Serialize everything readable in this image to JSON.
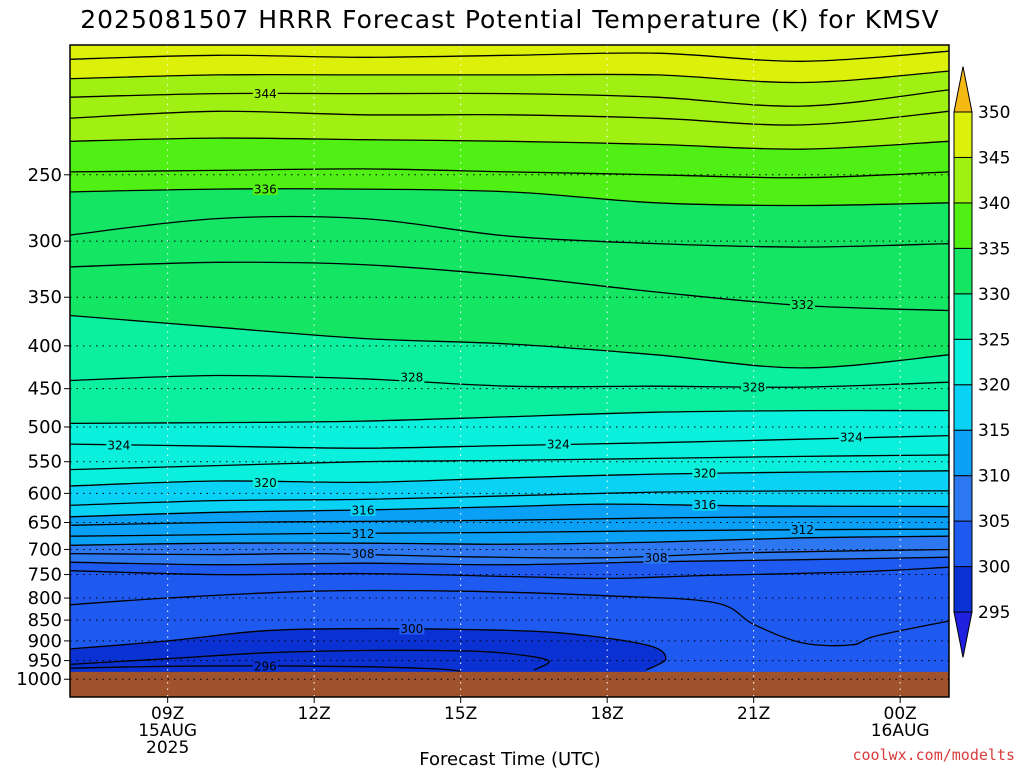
{
  "chart_data": {
    "type": "contour",
    "title": "2025081507 HRRR Forecast Potential Temperature (K) for KMSV",
    "xlabel": "Forecast Time (UTC)",
    "watermark": "coolwx.com/modelts",
    "x_ticks": [
      {
        "hour": 9,
        "lines": [
          "09Z",
          "15AUG",
          "2025"
        ]
      },
      {
        "hour": 12,
        "lines": [
          "12Z"
        ]
      },
      {
        "hour": 15,
        "lines": [
          "15Z"
        ]
      },
      {
        "hour": 18,
        "lines": [
          "18Z"
        ]
      },
      {
        "hour": 21,
        "lines": [
          "21Z"
        ]
      },
      {
        "hour": 24,
        "lines": [
          "00Z",
          "16AUG"
        ]
      }
    ],
    "xlim_hours": [
      7,
      25
    ],
    "y_axis": {
      "scale": "log",
      "reversed": true,
      "unit": "hPa",
      "ylim": [
        1050,
        175
      ]
    },
    "y_ticks": [
      250,
      300,
      350,
      400,
      450,
      500,
      550,
      600,
      650,
      700,
      750,
      800,
      850,
      900,
      950,
      1000
    ],
    "ground_level_hpa": 980,
    "colorbar": {
      "ticks": [
        295,
        300,
        305,
        310,
        315,
        320,
        325,
        330,
        335,
        340,
        345,
        350
      ],
      "extend": "both",
      "colors": [
        "#2020e0",
        "#0a32d2",
        "#1e5af0",
        "#2d78f0",
        "#0aa0f5",
        "#0ad2f5",
        "#0af0dc",
        "#0af0a0",
        "#14e664",
        "#50f014",
        "#a0f014",
        "#dcf00a",
        "#ffeb0a",
        "#f5b914"
      ]
    },
    "grid": "dotted",
    "contour_lines": [
      {
        "value": 296,
        "points": [
          [
            7,
            970
          ],
          [
            9,
            965
          ],
          [
            11,
            964
          ],
          [
            13,
            966
          ],
          [
            14.5,
            972
          ],
          [
            15,
            978
          ]
        ]
      },
      {
        "value": 298,
        "points": [
          [
            7,
            960
          ],
          [
            9,
            945
          ],
          [
            11,
            930
          ],
          [
            13,
            924
          ],
          [
            15,
            925
          ],
          [
            16,
            932
          ],
          [
            16.8,
            950
          ],
          [
            16.5,
            975
          ]
        ]
      },
      {
        "value": 300,
        "points": [
          [
            7,
            920
          ],
          [
            9,
            900
          ],
          [
            11,
            875
          ],
          [
            13,
            870
          ],
          [
            15,
            872
          ],
          [
            17,
            880
          ],
          [
            18.8,
            910
          ],
          [
            19.2,
            945
          ],
          [
            18.8,
            975
          ]
        ]
      },
      {
        "value": 302,
        "points": [
          [
            7,
            815
          ],
          [
            9,
            800
          ],
          [
            12,
            785
          ],
          [
            15,
            785
          ],
          [
            18,
            795
          ],
          [
            20.2,
            810
          ],
          [
            21,
            860
          ],
          [
            22,
            905
          ],
          [
            23,
            910
          ],
          [
            23.5,
            888
          ],
          [
            25,
            852
          ]
        ]
      },
      {
        "value": 304,
        "points": [
          [
            7,
            742
          ],
          [
            10,
            750
          ],
          [
            13,
            748
          ],
          [
            16,
            754
          ],
          [
            18,
            758
          ],
          [
            20,
            752
          ],
          [
            23,
            745
          ],
          [
            25,
            735
          ]
        ]
      },
      {
        "value": 306,
        "points": [
          [
            7,
            725
          ],
          [
            10,
            730
          ],
          [
            13,
            727
          ],
          [
            16,
            730
          ],
          [
            19,
            724
          ],
          [
            22,
            720
          ],
          [
            25,
            715
          ]
        ]
      },
      {
        "value": 308,
        "points": [
          [
            7,
            708
          ],
          [
            10,
            710
          ],
          [
            12,
            708
          ],
          [
            15,
            714
          ],
          [
            18,
            716
          ],
          [
            21,
            706
          ],
          [
            25,
            700
          ]
        ]
      },
      {
        "value": 310,
        "points": [
          [
            7,
            692
          ],
          [
            10,
            688
          ],
          [
            13,
            688
          ],
          [
            16,
            690
          ],
          [
            19,
            686
          ],
          [
            22,
            678
          ],
          [
            25,
            675
          ]
        ]
      },
      {
        "value": 312,
        "points": [
          [
            7,
            675
          ],
          [
            10,
            672
          ],
          [
            12,
            670
          ],
          [
            16,
            668
          ],
          [
            19,
            665
          ],
          [
            22,
            663
          ],
          [
            25,
            662
          ]
        ]
      },
      {
        "value": 314,
        "points": [
          [
            7,
            655
          ],
          [
            10,
            650
          ],
          [
            13,
            648
          ],
          [
            16,
            646
          ],
          [
            19,
            642
          ],
          [
            22,
            640
          ],
          [
            25,
            640
          ]
        ]
      },
      {
        "value": 316,
        "points": [
          [
            7,
            640
          ],
          [
            10,
            632
          ],
          [
            13,
            628
          ],
          [
            16,
            622
          ],
          [
            18,
            618
          ],
          [
            21,
            621
          ],
          [
            25,
            622
          ]
        ]
      },
      {
        "value": 318,
        "points": [
          [
            7,
            620
          ],
          [
            10,
            612
          ],
          [
            13,
            610
          ],
          [
            16,
            604
          ],
          [
            19,
            598
          ],
          [
            22,
            596
          ],
          [
            25,
            596
          ]
        ]
      },
      {
        "value": 320,
        "points": [
          [
            7,
            588
          ],
          [
            10,
            580
          ],
          [
            13,
            582
          ],
          [
            16,
            575
          ],
          [
            19,
            569
          ],
          [
            22,
            566
          ],
          [
            25,
            564
          ]
        ]
      },
      {
        "value": 322,
        "points": [
          [
            7,
            562
          ],
          [
            10,
            556
          ],
          [
            13,
            550
          ],
          [
            16,
            548
          ],
          [
            19,
            545
          ],
          [
            22,
            542
          ],
          [
            25,
            540
          ]
        ]
      },
      {
        "value": 324,
        "points": [
          [
            7,
            524
          ],
          [
            10,
            527
          ],
          [
            13,
            530
          ],
          [
            16,
            526
          ],
          [
            19,
            522
          ],
          [
            22,
            517
          ],
          [
            25,
            512
          ]
        ]
      },
      {
        "value": 326,
        "points": [
          [
            7,
            495
          ],
          [
            10,
            494
          ],
          [
            13,
            492
          ],
          [
            16,
            486
          ],
          [
            19,
            480
          ],
          [
            22,
            478
          ],
          [
            25,
            478
          ]
        ]
      },
      {
        "value": 328,
        "points": [
          [
            7,
            440
          ],
          [
            10,
            434
          ],
          [
            13,
            438
          ],
          [
            16,
            447
          ],
          [
            19,
            447
          ],
          [
            22,
            448
          ],
          [
            25,
            442
          ]
        ]
      },
      {
        "value": 330,
        "points": [
          [
            7,
            368
          ],
          [
            10,
            380
          ],
          [
            13,
            392
          ],
          [
            16,
            398
          ],
          [
            19,
            410
          ],
          [
            22,
            425
          ],
          [
            25,
            410
          ]
        ]
      },
      {
        "value": 332,
        "points": [
          [
            7,
            322
          ],
          [
            10,
            318
          ],
          [
            13,
            320
          ],
          [
            16,
            330
          ],
          [
            19,
            345
          ],
          [
            22,
            358
          ],
          [
            25,
            363
          ]
        ]
      },
      {
        "value": 334,
        "points": [
          [
            7,
            295
          ],
          [
            10,
            282
          ],
          [
            13,
            282
          ],
          [
            16,
            296
          ],
          [
            19,
            302
          ],
          [
            22,
            305
          ],
          [
            25,
            302
          ]
        ]
      },
      {
        "value": 336,
        "points": [
          [
            7,
            262
          ],
          [
            10,
            260
          ],
          [
            13,
            260
          ],
          [
            16,
            262
          ],
          [
            19,
            270
          ],
          [
            22,
            272
          ],
          [
            25,
            270
          ]
        ]
      },
      {
        "value": 338,
        "points": [
          [
            7,
            248
          ],
          [
            10,
            247
          ],
          [
            13,
            246
          ],
          [
            16,
            248
          ],
          [
            19,
            250
          ],
          [
            22,
            252
          ],
          [
            25,
            248
          ]
        ]
      },
      {
        "value": 340,
        "points": [
          [
            7,
            228
          ],
          [
            10,
            226
          ],
          [
            13,
            227
          ],
          [
            16,
            228
          ],
          [
            19,
            230
          ],
          [
            22,
            233
          ],
          [
            25,
            228
          ]
        ]
      },
      {
        "value": 342,
        "points": [
          [
            7,
            214
          ],
          [
            10,
            210
          ],
          [
            13,
            212
          ],
          [
            16,
            212
          ],
          [
            19,
            214
          ],
          [
            22,
            218
          ],
          [
            25,
            210
          ]
        ]
      },
      {
        "value": 344,
        "points": [
          [
            7,
            202
          ],
          [
            10,
            200
          ],
          [
            13,
            200
          ],
          [
            16,
            200
          ],
          [
            19,
            202
          ],
          [
            22,
            207
          ],
          [
            25,
            198
          ]
        ]
      },
      {
        "value": 346,
        "points": [
          [
            7,
            192
          ],
          [
            10,
            190
          ],
          [
            13,
            190
          ],
          [
            16,
            190
          ],
          [
            19,
            190
          ],
          [
            22,
            194
          ],
          [
            25,
            188
          ]
        ]
      },
      {
        "value": 348,
        "points": [
          [
            7,
            182
          ],
          [
            10,
            180
          ],
          [
            13,
            181
          ],
          [
            16,
            180
          ],
          [
            19,
            179
          ],
          [
            22,
            183
          ],
          [
            25,
            178
          ]
        ]
      }
    ],
    "contour_labels": [
      {
        "text": "344",
        "hour": 11,
        "p": 200
      },
      {
        "text": "336",
        "hour": 11,
        "p": 260
      },
      {
        "text": "332",
        "hour": 22,
        "p": 357
      },
      {
        "text": "328",
        "hour": 14,
        "p": 436
      },
      {
        "text": "328",
        "hour": 21,
        "p": 448
      },
      {
        "text": "324",
        "hour": 8,
        "p": 525
      },
      {
        "text": "324",
        "hour": 17,
        "p": 524
      },
      {
        "text": "324",
        "hour": 23,
        "p": 514
      },
      {
        "text": "320",
        "hour": 11,
        "p": 582
      },
      {
        "text": "320",
        "hour": 20,
        "p": 567
      },
      {
        "text": "316",
        "hour": 13,
        "p": 628
      },
      {
        "text": "316",
        "hour": 20,
        "p": 619
      },
      {
        "text": "312",
        "hour": 13,
        "p": 670
      },
      {
        "text": "312",
        "hour": 22,
        "p": 663
      },
      {
        "text": "308",
        "hour": 13,
        "p": 708
      },
      {
        "text": "308",
        "hour": 19,
        "p": 716
      },
      {
        "text": "300",
        "hour": 14,
        "p": 870
      },
      {
        "text": "296",
        "hour": 11,
        "p": 964
      }
    ]
  }
}
